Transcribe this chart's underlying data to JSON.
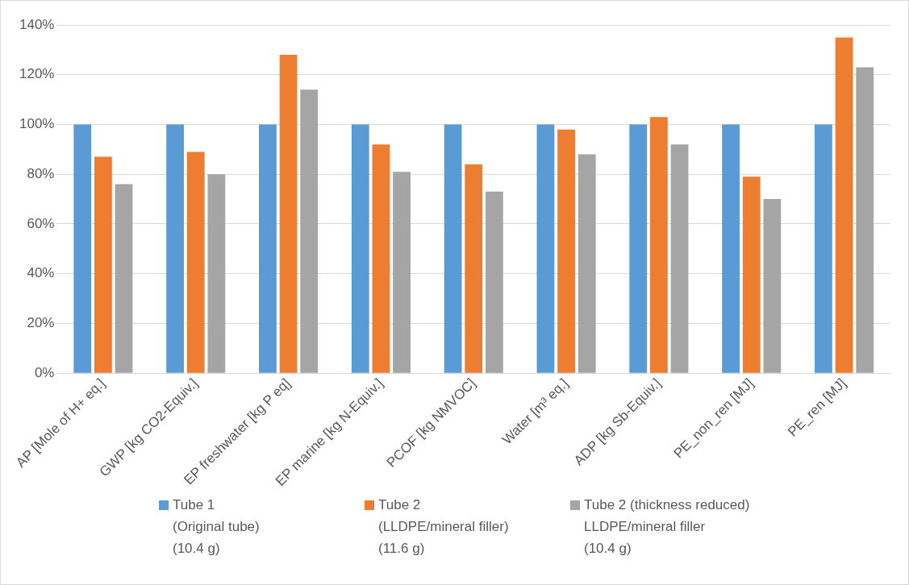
{
  "chart_data": {
    "type": "bar",
    "categories": [
      "AP [Mole of H+ eq.]",
      "GWP [kg CO2-Equiv.]",
      "EP freshwater [kg P eq]",
      "EP marine [kg N-Equiv.]",
      "PCOF [kg NMVOC]",
      "Water [m³ eq.]",
      "ADP [kg Sb-Equiv.]",
      "PE_non_ren [MJ]",
      "PE_ren [MJ]"
    ],
    "series": [
      {
        "name": "Tube 1\n(Original tube)\n(10.4 g)",
        "color": "#5b9bd5",
        "values": [
          100,
          100,
          100,
          100,
          100,
          100,
          100,
          100,
          100
        ]
      },
      {
        "name": "Tube 2\n(LLDPE/mineral filler)\n(11.6 g)",
        "color": "#ed7d31",
        "values": [
          87,
          89,
          128,
          92,
          84,
          98,
          103,
          79,
          135
        ]
      },
      {
        "name": "Tube 2 (thickness reduced)\nLLDPE/mineral filler\n(10.4 g)",
        "color": "#a5a5a5",
        "values": [
          76,
          80,
          114,
          81,
          73,
          88,
          92,
          70,
          123
        ]
      }
    ],
    "ylim": [
      0,
      140
    ],
    "yticks": [
      {
        "value": 0,
        "label": "0%"
      },
      {
        "value": 20,
        "label": "20%"
      },
      {
        "value": 40,
        "label": "40%"
      },
      {
        "value": 60,
        "label": "60%"
      },
      {
        "value": 80,
        "label": "80%"
      },
      {
        "value": 100,
        "label": "100%"
      },
      {
        "value": 120,
        "label": "120%"
      },
      {
        "value": 140,
        "label": "140%"
      }
    ],
    "grid": "y",
    "legend": "bottom"
  }
}
